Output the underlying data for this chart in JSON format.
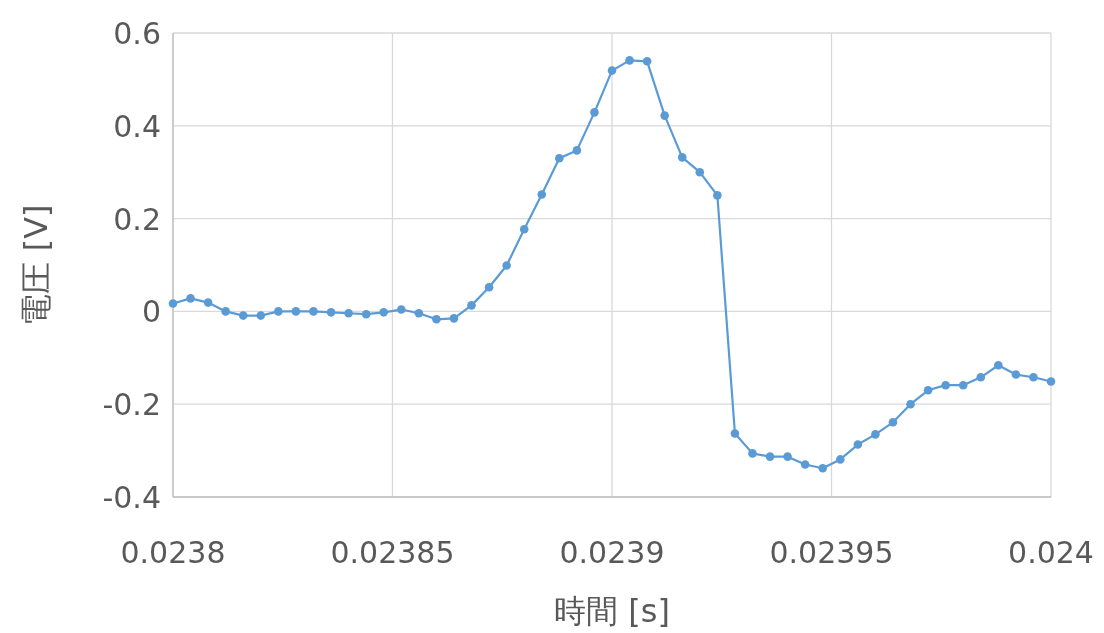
{
  "chart_data": {
    "type": "line",
    "xlabel": "時間 [s]",
    "ylabel": "電圧 [V]",
    "x": [
      0.0238,
      0.023804,
      0.023808,
      0.023812,
      0.023816,
      0.02382,
      0.023824,
      0.023828,
      0.023832,
      0.023836,
      0.02384,
      0.023844,
      0.023848,
      0.023852,
      0.023856,
      0.02386,
      0.023864,
      0.023868,
      0.023872,
      0.023876,
      0.02388,
      0.023884,
      0.023888,
      0.023892,
      0.023896,
      0.0239,
      0.023904,
      0.023908,
      0.023912,
      0.023916,
      0.02392,
      0.023924,
      0.023928,
      0.023932,
      0.023936,
      0.02394,
      0.023944,
      0.023948,
      0.023952,
      0.023956,
      0.02396,
      0.023964,
      0.023968,
      0.023972,
      0.023976,
      0.02398,
      0.023984,
      0.023988,
      0.023992,
      0.023996,
      0.024
    ],
    "series": [
      {
        "color": "#5b9bd5",
        "values": [
          0.017,
          0.028,
          0.019,
          0.0,
          -0.009,
          -0.009,
          0.0,
          0.0,
          0.0,
          -0.002,
          -0.004,
          -0.006,
          -0.002,
          0.004,
          -0.004,
          -0.017,
          -0.015,
          0.013,
          0.052,
          0.099,
          0.177,
          0.252,
          0.33,
          0.347,
          0.429,
          0.519,
          0.541,
          0.539,
          0.422,
          0.332,
          0.3,
          0.25,
          -0.263,
          -0.306,
          -0.313,
          -0.313,
          -0.33,
          -0.338,
          -0.319,
          -0.287,
          -0.265,
          -0.239,
          -0.2,
          -0.17,
          -0.159,
          -0.159,
          -0.142,
          -0.116,
          -0.136,
          -0.142,
          -0.151
        ]
      }
    ],
    "xlim": [
      0.0238,
      0.024
    ],
    "ylim": [
      -0.4,
      0.6
    ],
    "xticks": [
      0.0238,
      0.02385,
      0.0239,
      0.02395,
      0.024
    ],
    "yticks": [
      -0.4,
      -0.2,
      0,
      0.2,
      0.4,
      0.6
    ],
    "grid": true,
    "marker": "circle",
    "line_style": "solid"
  }
}
